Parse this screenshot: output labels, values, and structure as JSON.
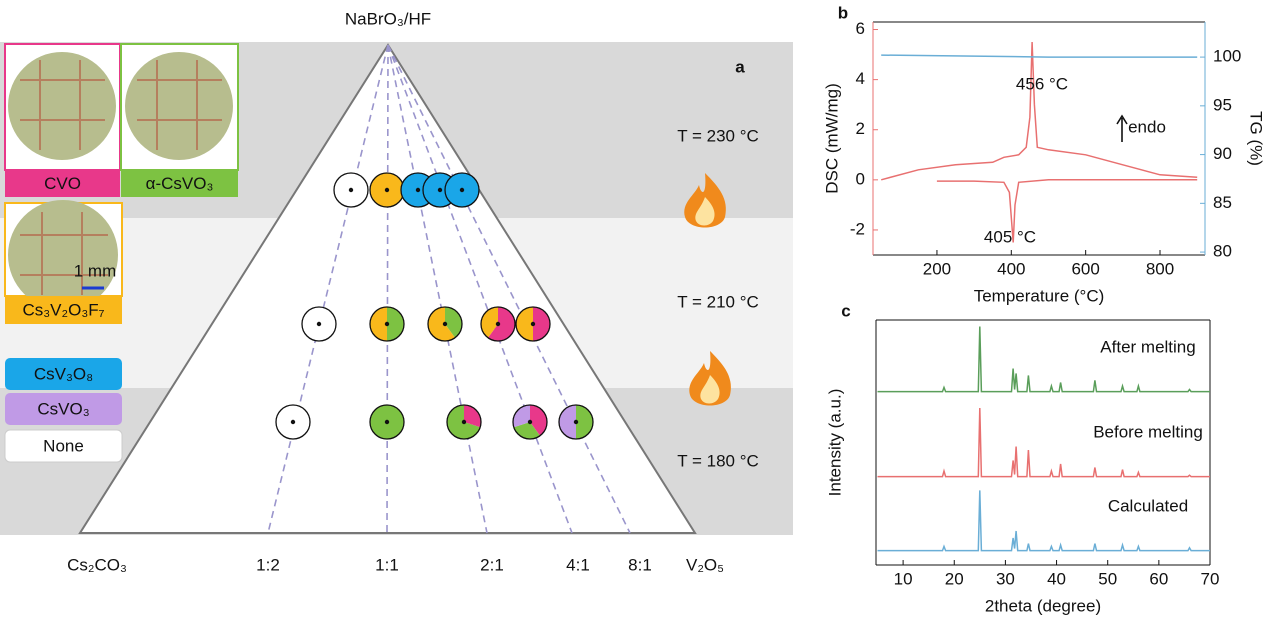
{
  "diagram": {
    "label": "a",
    "apex": "NaBrO₃/HF",
    "left": "Cs₂CO₃",
    "right": "V₂O₅",
    "ratios": [
      "1:2",
      "1:1",
      "2:1",
      "4:1",
      "8:1"
    ],
    "temperatures": [
      "T = 230 °C",
      "T = 210 °C",
      "T = 180 °C"
    ],
    "scale": "1 mm",
    "legend": [
      {
        "label": "CVO",
        "color": "#e8388a"
      },
      {
        "label": "α-CsVO₃",
        "color": "#7dc242"
      },
      {
        "label": "Cs₃V₂O₃F₇",
        "color": "#f9b81b"
      },
      {
        "label": "CsV₃O₈",
        "color": "#1aa6e8"
      },
      {
        "label": "CsVO₃",
        "color": "#c09ae6"
      },
      {
        "label": "None",
        "color": "#ffffff"
      }
    ],
    "rows": [
      {
        "points": [
          [
            0,
            0,
            0,
            0,
            0,
            100
          ],
          [
            0,
            0,
            100,
            0,
            0,
            0
          ],
          [
            0,
            0,
            0,
            100,
            0,
            0
          ],
          [
            0,
            0,
            0,
            100,
            0,
            0
          ],
          [
            0,
            0,
            0,
            100,
            0,
            0
          ]
        ]
      },
      {
        "points": [
          [
            0,
            0,
            0,
            0,
            0,
            100
          ],
          [
            0,
            50,
            50,
            0,
            0,
            0
          ],
          [
            0,
            40,
            60,
            0,
            0,
            0
          ],
          [
            60,
            0,
            40,
            0,
            0,
            0
          ],
          [
            50,
            0,
            50,
            0,
            0,
            0
          ]
        ]
      },
      {
        "points": [
          [
            0,
            0,
            0,
            0,
            0,
            100
          ],
          [
            0,
            100,
            0,
            0,
            0,
            0
          ],
          [
            30,
            70,
            0,
            0,
            0,
            0
          ],
          [
            40,
            30,
            0,
            0,
            30,
            0
          ],
          [
            0,
            50,
            0,
            0,
            50,
            0
          ]
        ]
      }
    ]
  },
  "chart_data": [
    {
      "type": "line",
      "label": "b",
      "xlabel": "Temperature (°C)",
      "ylabel": "DSC (mW/mg)",
      "y2label": "TG (%)",
      "xlim": [
        28,
        921
      ],
      "xticks": [
        200,
        400,
        600,
        800
      ],
      "ylim": [
        -3,
        6.3
      ],
      "yticks": [
        -2,
        0,
        2,
        4,
        6
      ],
      "y2lim": [
        79.7,
        103.6
      ],
      "y2ticks": [
        80,
        85,
        90,
        95,
        100
      ],
      "annotations": [
        "456 °C",
        "405 °C",
        "endo"
      ],
      "series": [
        {
          "color": "#e87070",
          "x": [
            50,
            150,
            250,
            350,
            380,
            420,
            440,
            450,
            456,
            462,
            470,
            500,
            600,
            700,
            800,
            900
          ],
          "values": [
            0,
            0.4,
            0.6,
            0.7,
            0.9,
            1.0,
            1.3,
            2.5,
            5.5,
            3,
            1.3,
            1.2,
            1.0,
            0.6,
            0.2,
            0.1
          ]
        },
        {
          "color": "#e87070",
          "x": [
            200,
            300,
            380,
            395,
            400,
            405,
            410,
            420,
            500,
            700,
            900
          ],
          "values": [
            -0.05,
            -0.05,
            -0.1,
            -0.5,
            -1.5,
            -2.5,
            -1.0,
            -0.1,
            0,
            0,
            0
          ]
        },
        {
          "color": "#6aaed6",
          "axis": "y2",
          "x": [
            50,
            300,
            500,
            700,
            900
          ],
          "values": [
            100.2,
            100.1,
            100,
            100,
            100
          ]
        }
      ]
    },
    {
      "type": "line",
      "label": "c",
      "offset": true,
      "xlabel": "2theta (degree)",
      "ylabel": "Intensity (a.u.)",
      "xlim": [
        4.7,
        70
      ],
      "xticks": [
        10,
        20,
        30,
        40,
        50,
        60,
        70
      ],
      "ylim": [
        0,
        100
      ],
      "x": [
        5,
        17.7,
        18,
        18.3,
        24.7,
        25,
        25.3,
        31.2,
        31.5,
        31.8,
        32.1,
        32.4,
        34.2,
        34.5,
        34.8,
        38.7,
        39,
        39.3,
        40.5,
        40.8,
        41.1,
        47.2,
        47.5,
        47.8,
        52.6,
        52.9,
        53.2,
        55.7,
        56,
        56.3,
        65.7,
        66,
        66.3,
        70
      ],
      "series": [
        {
          "name": "After melting",
          "color": "#5a9e5a",
          "values": [
            2,
            2,
            8,
            2,
            2,
            95,
            2,
            2,
            35,
            5,
            28,
            2,
            2,
            25,
            2,
            2,
            10,
            2,
            2,
            15,
            2,
            2,
            18,
            2,
            2,
            10,
            2,
            2,
            10,
            2,
            2,
            5,
            2,
            2
          ]
        },
        {
          "name": "Before melting",
          "color": "#e87070",
          "values": [
            2,
            2,
            10,
            2,
            2,
            100,
            2,
            2,
            25,
            5,
            45,
            2,
            2,
            40,
            2,
            2,
            10,
            2,
            2,
            20,
            2,
            2,
            15,
            2,
            2,
            12,
            2,
            2,
            8,
            2,
            2,
            4,
            2,
            2
          ]
        },
        {
          "name": "Calculated",
          "color": "#6aaed6",
          "values": [
            2,
            2,
            8,
            2,
            2,
            88,
            2,
            2,
            20,
            5,
            30,
            2,
            2,
            12,
            2,
            2,
            8,
            2,
            2,
            10,
            2,
            2,
            12,
            2,
            2,
            10,
            2,
            2,
            8,
            2,
            2,
            6,
            2,
            2
          ]
        }
      ]
    }
  ]
}
